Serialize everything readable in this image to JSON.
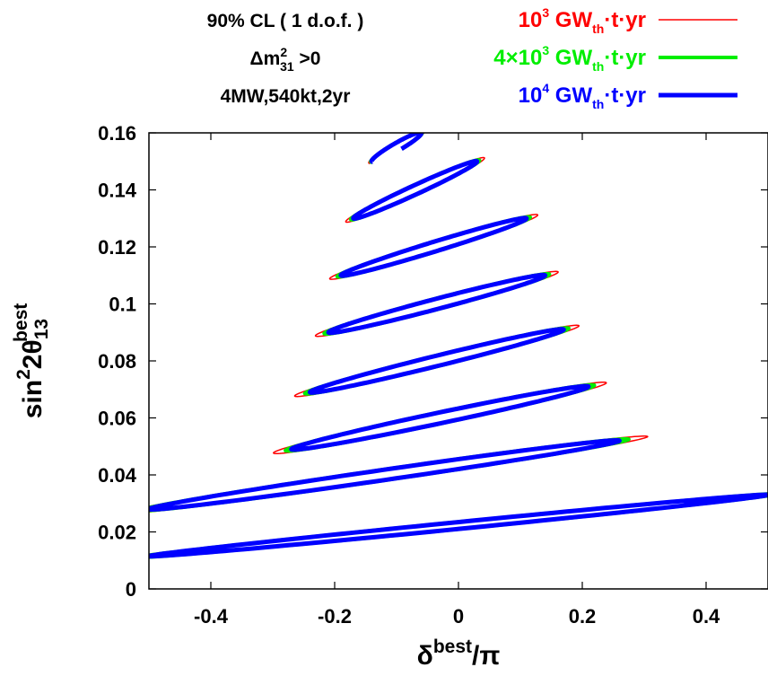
{
  "chart_data": {
    "type": "line",
    "xlabel": {
      "main": "δ",
      "sup": "best",
      "tail": "/π"
    },
    "ylabel": {
      "pre": "sin",
      "sup1": "2",
      "mid": "2θ",
      "sub": "13",
      "sup": "best"
    },
    "xlim": [
      -0.5,
      0.5
    ],
    "ylim": [
      0,
      0.16
    ],
    "xticks": [
      -0.4,
      -0.2,
      0,
      0.2,
      0.4
    ],
    "xtick_labels": [
      "-0.4",
      "-0.2",
      "0",
      "0.2",
      "0.4"
    ],
    "yticks": [
      0,
      0.02,
      0.04,
      0.06,
      0.08,
      0.1,
      0.12,
      0.14,
      0.16
    ],
    "ytick_labels": [
      "0",
      "0.02",
      "0.04",
      "0.06",
      "0.08",
      "0.1",
      "0.12",
      "0.14",
      "0.16"
    ],
    "grid": false,
    "legend_position": "top-right",
    "annotations": [
      "90% CL ( 1 d.o.f. )",
      {
        "pre": "Δm",
        "sup": "2",
        "sub": "31",
        "post": " >0"
      },
      "4MW,540kt,2yr"
    ],
    "series": [
      {
        "name": {
          "base": "10",
          "exp": "3",
          "unit": " GW",
          "sub": "th",
          "post": "·t·yr"
        },
        "color": "#ff0000",
        "line_width": 1.5,
        "scale": 1.12
      },
      {
        "name": {
          "base": "4×10",
          "exp": "3",
          "unit": " GW",
          "sub": "th",
          "post": "·t·yr"
        },
        "color": "#00ee00",
        "line_width": 4,
        "scale": 1.04
      },
      {
        "name": {
          "base": "10",
          "exp": "4",
          "unit": " GW",
          "sub": "th",
          "post": "·t·yr"
        },
        "color": "#0000ff",
        "line_width": 5,
        "scale": 1.0
      }
    ],
    "contours": [
      {
        "x1": -0.14,
        "y1": 0.15,
        "x2": -0.06,
        "y2": 0.16,
        "w": 0.0014,
        "open_top": true
      },
      {
        "x1": -0.17,
        "y1": 0.13,
        "x2": 0.03,
        "y2": 0.15,
        "w": 0.0016
      },
      {
        "x1": -0.19,
        "y1": 0.11,
        "x2": 0.11,
        "y2": 0.13,
        "w": 0.0017
      },
      {
        "x1": -0.21,
        "y1": 0.09,
        "x2": 0.14,
        "y2": 0.11,
        "w": 0.0018
      },
      {
        "x1": -0.24,
        "y1": 0.069,
        "x2": 0.17,
        "y2": 0.091,
        "w": 0.0018
      },
      {
        "x1": -0.27,
        "y1": 0.049,
        "x2": 0.21,
        "y2": 0.071,
        "w": 0.0019
      },
      {
        "x1": -0.5,
        "y1": 0.028,
        "x2": 0.26,
        "y2": 0.052,
        "w": 0.0018
      },
      {
        "x1": -0.5,
        "y1": 0.0115,
        "x2": 0.5,
        "y2": 0.033,
        "w": 0.0012
      }
    ]
  }
}
